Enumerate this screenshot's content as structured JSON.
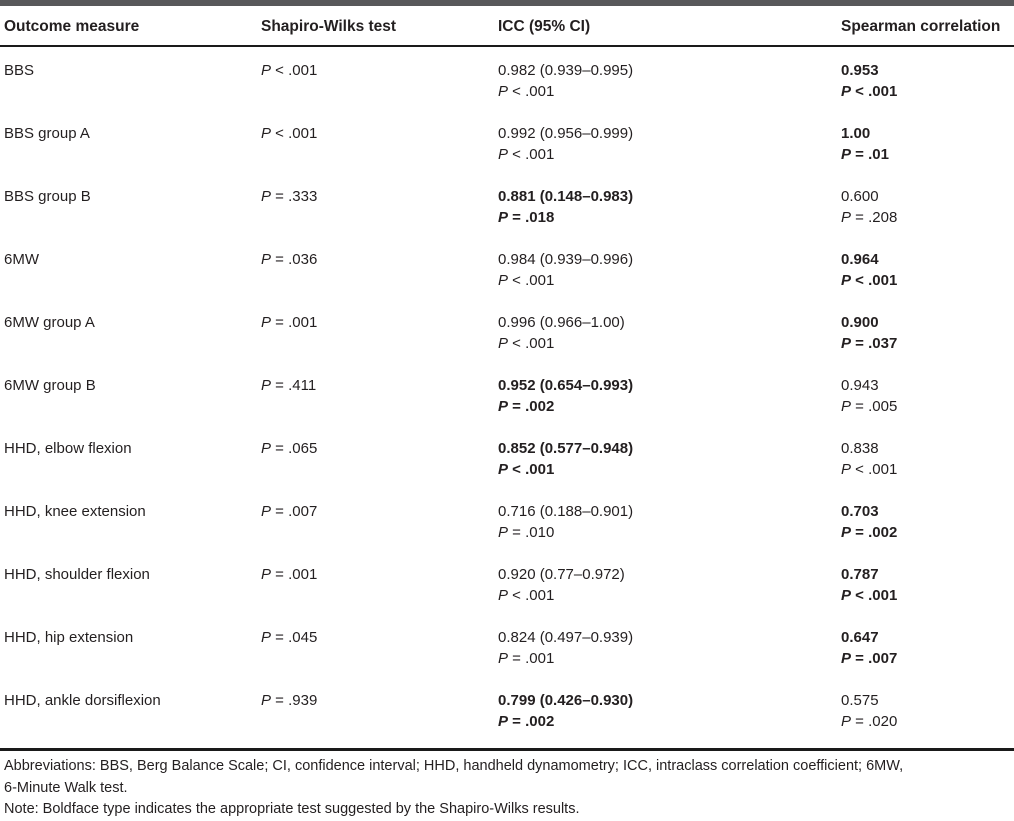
{
  "header": {
    "columns": [
      "Outcome measure",
      "Shapiro-Wilks test",
      "ICC (95% CI)",
      "Spearman correlation"
    ]
  },
  "rows": [
    {
      "measure": "BBS",
      "shapiro_p": "P < .001",
      "icc": {
        "value": "0.982 (0.939–0.995)",
        "p": "P < .001",
        "bold": false
      },
      "spearman": {
        "value": "0.953",
        "p": "P < .001",
        "bold": true
      }
    },
    {
      "measure": "BBS group A",
      "shapiro_p": "P < .001",
      "icc": {
        "value": "0.992 (0.956–0.999)",
        "p": "P < .001",
        "bold": false
      },
      "spearman": {
        "value": "1.00",
        "p": "P = .01",
        "bold": true
      }
    },
    {
      "measure": "BBS group B",
      "shapiro_p": "P = .333",
      "icc": {
        "value": "0.881 (0.148–0.983)",
        "p": "P = .018",
        "bold": true
      },
      "spearman": {
        "value": "0.600",
        "p": "P = .208",
        "bold": false
      }
    },
    {
      "measure": "6MW",
      "shapiro_p": "P = .036",
      "icc": {
        "value": "0.984 (0.939–0.996)",
        "p": "P < .001",
        "bold": false
      },
      "spearman": {
        "value": "0.964",
        "p": "P < .001",
        "bold": true
      }
    },
    {
      "measure": "6MW group A",
      "shapiro_p": "P = .001",
      "icc": {
        "value": "0.996 (0.966–1.00)",
        "p": "P < .001",
        "bold": false
      },
      "spearman": {
        "value": "0.900",
        "p": "P = .037",
        "bold": true
      }
    },
    {
      "measure": "6MW group B",
      "shapiro_p": "P = .411",
      "icc": {
        "value": "0.952 (0.654–0.993)",
        "p": "P = .002",
        "bold": true
      },
      "spearman": {
        "value": "0.943",
        "p": "P = .005",
        "bold": false
      }
    },
    {
      "measure": "HHD, elbow flexion",
      "shapiro_p": "P = .065",
      "icc": {
        "value": "0.852 (0.577–0.948)",
        "p": "P < .001",
        "bold": true
      },
      "spearman": {
        "value": "0.838",
        "p": "P < .001",
        "bold": false
      }
    },
    {
      "measure": "HHD, knee extension",
      "shapiro_p": "P = .007",
      "icc": {
        "value": "0.716 (0.188–0.901)",
        "p": "P = .010",
        "bold": false
      },
      "spearman": {
        "value": "0.703",
        "p": "P = .002",
        "bold": true
      }
    },
    {
      "measure": "HHD, shoulder flexion",
      "shapiro_p": "P = .001",
      "icc": {
        "value": "0.920 (0.77–0.972)",
        "p": "P < .001",
        "bold": false
      },
      "spearman": {
        "value": "0.787",
        "p": "P < .001",
        "bold": true
      }
    },
    {
      "measure": "HHD, hip extension",
      "shapiro_p": "P = .045",
      "icc": {
        "value": "0.824 (0.497–0.939)",
        "p": "P = .001",
        "bold": false
      },
      "spearman": {
        "value": "0.647",
        "p": "P = .007",
        "bold": true
      }
    },
    {
      "measure": "HHD, ankle dorsiflexion",
      "shapiro_p": "P = .939",
      "icc": {
        "value": "0.799 (0.426–0.930)",
        "p": "P = .002",
        "bold": true
      },
      "spearman": {
        "value": "0.575",
        "p": "P = .020",
        "bold": false
      }
    }
  ],
  "footnotes": {
    "abbreviations_line1": "Abbreviations: BBS, Berg Balance Scale; CI, confidence interval; HHD, handheld dynamometry; ICC, intraclass correlation coefficient; 6MW,",
    "abbreviations_line2": "6-Minute Walk test.",
    "note": "Note: Boldface type indicates the appropriate test suggested by the Shapiro-Wilks results."
  },
  "colors": {
    "background": "#ffffff",
    "text": "#231f20",
    "top_bar": "#58585a",
    "rule": "#1a1a1a"
  }
}
